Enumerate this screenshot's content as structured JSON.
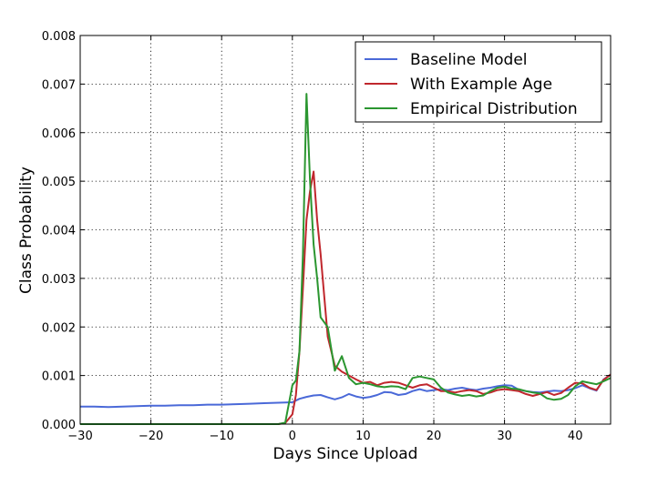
{
  "chart_data": {
    "type": "line",
    "title": "",
    "xlabel": "Days Since Upload",
    "ylabel": "Class Probability",
    "xlim": [
      -30,
      45
    ],
    "ylim": [
      0,
      0.008
    ],
    "grid": true,
    "legend_position": "top-right",
    "x_ticks": [
      -30,
      -20,
      -10,
      0,
      10,
      20,
      30,
      40
    ],
    "x_tick_labels": [
      "−30",
      "−20",
      "−10",
      "0",
      "10",
      "20",
      "30",
      "40"
    ],
    "y_ticks": [
      0,
      0.001,
      0.002,
      0.003,
      0.004,
      0.005,
      0.006,
      0.007,
      0.008
    ],
    "y_tick_labels": [
      "0.000",
      "0.001",
      "0.002",
      "0.003",
      "0.004",
      "0.005",
      "0.006",
      "0.007",
      "0.008"
    ],
    "series": [
      {
        "name": "Baseline Model",
        "color": "#4a69d8",
        "x": [
          -30,
          -28,
          -26,
          -24,
          -22,
          -20,
          -18,
          -16,
          -14,
          -12,
          -10,
          -8,
          -6,
          -4,
          -2,
          0,
          1,
          2,
          3,
          4,
          5,
          6,
          7,
          8,
          9,
          10,
          11,
          12,
          13,
          14,
          15,
          16,
          17,
          18,
          19,
          20,
          21,
          22,
          23,
          24,
          25,
          26,
          27,
          28,
          29,
          30,
          31,
          32,
          33,
          34,
          35,
          36,
          37,
          38,
          39,
          40,
          41,
          42,
          43,
          44,
          45
        ],
        "values": [
          0.00036,
          0.00036,
          0.00035,
          0.00036,
          0.00037,
          0.00038,
          0.00038,
          0.00039,
          0.00039,
          0.0004,
          0.0004,
          0.00041,
          0.00042,
          0.00043,
          0.00044,
          0.00045,
          0.00052,
          0.00056,
          0.00059,
          0.0006,
          0.00055,
          0.00051,
          0.00055,
          0.00062,
          0.00057,
          0.00054,
          0.00056,
          0.0006,
          0.00066,
          0.00065,
          0.0006,
          0.00062,
          0.00068,
          0.00072,
          0.00068,
          0.0007,
          0.00072,
          0.0007,
          0.00073,
          0.00075,
          0.00072,
          0.0007,
          0.00073,
          0.00075,
          0.00078,
          0.0008,
          0.00079,
          0.00071,
          0.00068,
          0.00066,
          0.00065,
          0.00067,
          0.00069,
          0.00068,
          0.0007,
          0.00074,
          0.0008,
          0.00074,
          0.00069,
          0.00092,
          0.00102
        ]
      },
      {
        "name": "With Example Age",
        "color": "#c0272d",
        "x": [
          -30,
          -28,
          -26,
          -24,
          -22,
          -20,
          -18,
          -16,
          -14,
          -12,
          -10,
          -8,
          -6,
          -4,
          -2,
          -1,
          0,
          0.5,
          1,
          1.5,
          2,
          2.5,
          3,
          3.5,
          4,
          5,
          6,
          7,
          8,
          9,
          10,
          11,
          12,
          13,
          14,
          15,
          16,
          17,
          18,
          19,
          20,
          21,
          22,
          23,
          24,
          25,
          26,
          27,
          28,
          29,
          30,
          31,
          32,
          33,
          34,
          35,
          36,
          37,
          38,
          39,
          40,
          41,
          42,
          43,
          44,
          45
        ],
        "values": [
          0,
          0,
          0,
          0,
          0,
          0,
          0,
          0,
          0,
          0,
          0,
          0,
          0,
          0,
          0,
          2e-05,
          0.0002,
          0.0006,
          0.0015,
          0.0028,
          0.0042,
          0.0048,
          0.0052,
          0.0042,
          0.0035,
          0.0018,
          0.0012,
          0.00108,
          0.001,
          0.00092,
          0.00085,
          0.00087,
          0.0008,
          0.00085,
          0.00087,
          0.00085,
          0.0008,
          0.00075,
          0.0008,
          0.00082,
          0.00075,
          0.00068,
          0.00068,
          0.00065,
          0.00068,
          0.0007,
          0.00068,
          0.00062,
          0.00065,
          0.0007,
          0.00072,
          0.0007,
          0.00068,
          0.00062,
          0.00058,
          0.00062,
          0.00066,
          0.0006,
          0.00064,
          0.00075,
          0.00085,
          0.00084,
          0.00075,
          0.0007,
          0.00091,
          0.00102
        ]
      },
      {
        "name": "Empirical Distribution",
        "color": "#2b9630",
        "x": [
          -30,
          -28,
          -26,
          -24,
          -22,
          -20,
          -18,
          -16,
          -14,
          -12,
          -10,
          -8,
          -6,
          -4,
          -2,
          -1,
          0,
          0.5,
          1,
          1.5,
          2,
          2.5,
          3,
          3.5,
          4,
          5,
          6,
          7,
          8,
          9,
          10,
          11,
          12,
          13,
          14,
          15,
          16,
          17,
          18,
          19,
          20,
          21,
          22,
          23,
          24,
          25,
          26,
          27,
          28,
          29,
          30,
          31,
          32,
          33,
          34,
          35,
          36,
          37,
          38,
          39,
          40,
          41,
          42,
          43,
          44,
          45
        ],
        "values": [
          0,
          0,
          0,
          0,
          0,
          0,
          0,
          0,
          0,
          0,
          0,
          0,
          0,
          0,
          0,
          3e-05,
          0.0008,
          0.0009,
          0.0015,
          0.0035,
          0.0068,
          0.005,
          0.0037,
          0.003,
          0.0022,
          0.002,
          0.0011,
          0.0014,
          0.00095,
          0.00082,
          0.00085,
          0.00082,
          0.00078,
          0.00076,
          0.00078,
          0.00077,
          0.00072,
          0.00095,
          0.00098,
          0.00095,
          0.00092,
          0.00075,
          0.00065,
          0.00061,
          0.00058,
          0.0006,
          0.00057,
          0.00059,
          0.00068,
          0.00075,
          0.00077,
          0.00073,
          0.00072,
          0.00068,
          0.00065,
          0.00063,
          0.00053,
          0.0005,
          0.00052,
          0.0006,
          0.00078,
          0.00088,
          0.00085,
          0.00082,
          0.00088,
          0.00095
        ]
      }
    ]
  }
}
